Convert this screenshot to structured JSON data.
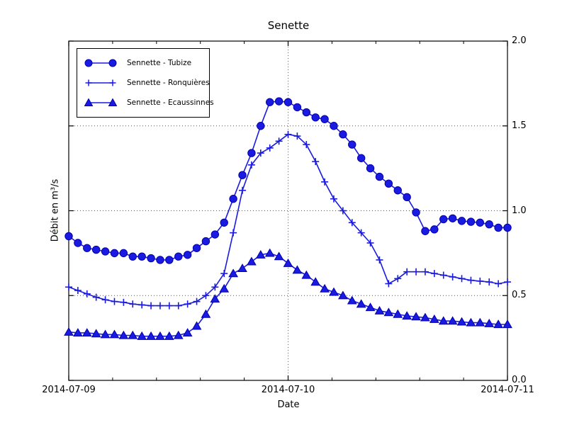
{
  "figure": {
    "title": "Senette",
    "xlabel": "Date",
    "ylabel": "Débit en m³/s"
  },
  "chart_data": {
    "type": "line",
    "title": "Senette",
    "xlabel": "Date",
    "ylabel": "Débit en m³/s",
    "x_start": "2014-07-09 00:00",
    "x_end": "2014-07-11 00:00",
    "x_interval_hours": 1,
    "xlim_hours": [
      0,
      48
    ],
    "ylim": [
      0.0,
      2.0
    ],
    "x_ticks": [
      {
        "hour": 0,
        "label": "2014-07-09"
      },
      {
        "hour": 24,
        "label": "2014-07-10"
      },
      {
        "hour": 48,
        "label": "2014-07-11"
      }
    ],
    "x_minor_tick_hours": [
      4.8,
      9.6,
      14.4,
      19.2,
      28.8,
      33.6,
      38.4,
      43.2
    ],
    "y_ticks": [
      {
        "value": 0.0,
        "label": "0.0"
      },
      {
        "value": 0.5,
        "label": "0.5"
      },
      {
        "value": 1.0,
        "label": "1.0"
      },
      {
        "value": 1.5,
        "label": "1.5"
      },
      {
        "value": 2.0,
        "label": "2.0"
      }
    ],
    "grid": {
      "style": "dotted",
      "horizontal_values": [
        0.5,
        1.0,
        1.5
      ],
      "vertical_hours": [
        24
      ]
    },
    "legend": {
      "position": "upper-left"
    },
    "colors": {
      "series": "#1a1ae0",
      "marker_edge": "#0000b0",
      "axis": "#000000",
      "grid": "#555555",
      "background": "#ffffff"
    },
    "series": [
      {
        "name": "Sennette - Tubize",
        "marker": "circle",
        "values": [
          0.85,
          0.81,
          0.78,
          0.77,
          0.76,
          0.75,
          0.75,
          0.73,
          0.73,
          0.72,
          0.71,
          0.71,
          0.73,
          0.74,
          0.78,
          0.82,
          0.86,
          0.93,
          1.07,
          1.21,
          1.34,
          1.5,
          1.64,
          1.645,
          1.64,
          1.61,
          1.58,
          1.55,
          1.54,
          1.5,
          1.45,
          1.39,
          1.31,
          1.25,
          1.2,
          1.16,
          1.12,
          1.08,
          0.99,
          0.88,
          0.89,
          0.95,
          0.955,
          0.94,
          0.935,
          0.93,
          0.92,
          0.9,
          0.9
        ]
      },
      {
        "name": "Sennette - Ronquières",
        "marker": "plus",
        "values": [
          0.55,
          0.53,
          0.51,
          0.49,
          0.475,
          0.465,
          0.46,
          0.45,
          0.445,
          0.44,
          0.44,
          0.44,
          0.44,
          0.45,
          0.465,
          0.5,
          0.55,
          0.63,
          0.87,
          1.12,
          1.27,
          1.34,
          1.37,
          1.41,
          1.45,
          1.44,
          1.39,
          1.29,
          1.17,
          1.07,
          1.0,
          0.93,
          0.87,
          0.81,
          0.71,
          0.57,
          0.6,
          0.64,
          0.64,
          0.64,
          0.63,
          0.62,
          0.61,
          0.6,
          0.59,
          0.585,
          0.58,
          0.57,
          0.58
        ]
      },
      {
        "name": "Sennette - Ecaussinnes",
        "marker": "triangle",
        "values": [
          0.285,
          0.28,
          0.28,
          0.275,
          0.27,
          0.27,
          0.265,
          0.265,
          0.26,
          0.26,
          0.26,
          0.26,
          0.265,
          0.28,
          0.32,
          0.39,
          0.48,
          0.54,
          0.63,
          0.66,
          0.7,
          0.74,
          0.75,
          0.73,
          0.69,
          0.65,
          0.62,
          0.58,
          0.54,
          0.52,
          0.5,
          0.47,
          0.45,
          0.43,
          0.41,
          0.4,
          0.39,
          0.38,
          0.375,
          0.37,
          0.36,
          0.35,
          0.35,
          0.345,
          0.34,
          0.34,
          0.335,
          0.33,
          0.33
        ]
      }
    ]
  }
}
